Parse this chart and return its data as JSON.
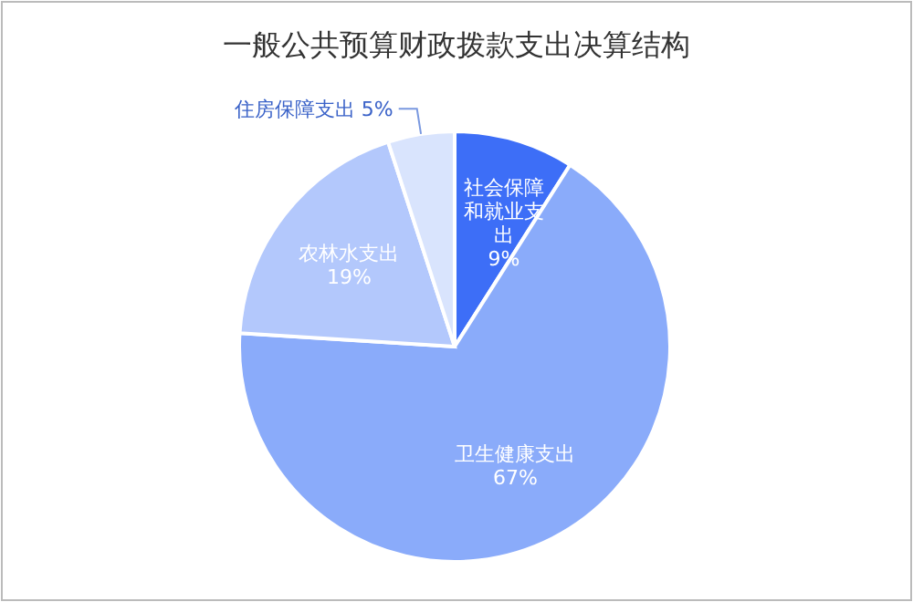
{
  "chart_data": {
    "type": "pie",
    "title": "一般公共预算财政拨款支出决算结构",
    "categories": [
      "社会保障和就业支出",
      "卫生健康支出",
      "农林水支出",
      "住房保障支出"
    ],
    "values": [
      9,
      67,
      19,
      5
    ],
    "colors": [
      "#3d6ef7",
      "#8aabfa",
      "#b3c8fc",
      "#d9e4fd"
    ],
    "value_labels": [
      "9%",
      "67%",
      "19%",
      "5%"
    ]
  }
}
